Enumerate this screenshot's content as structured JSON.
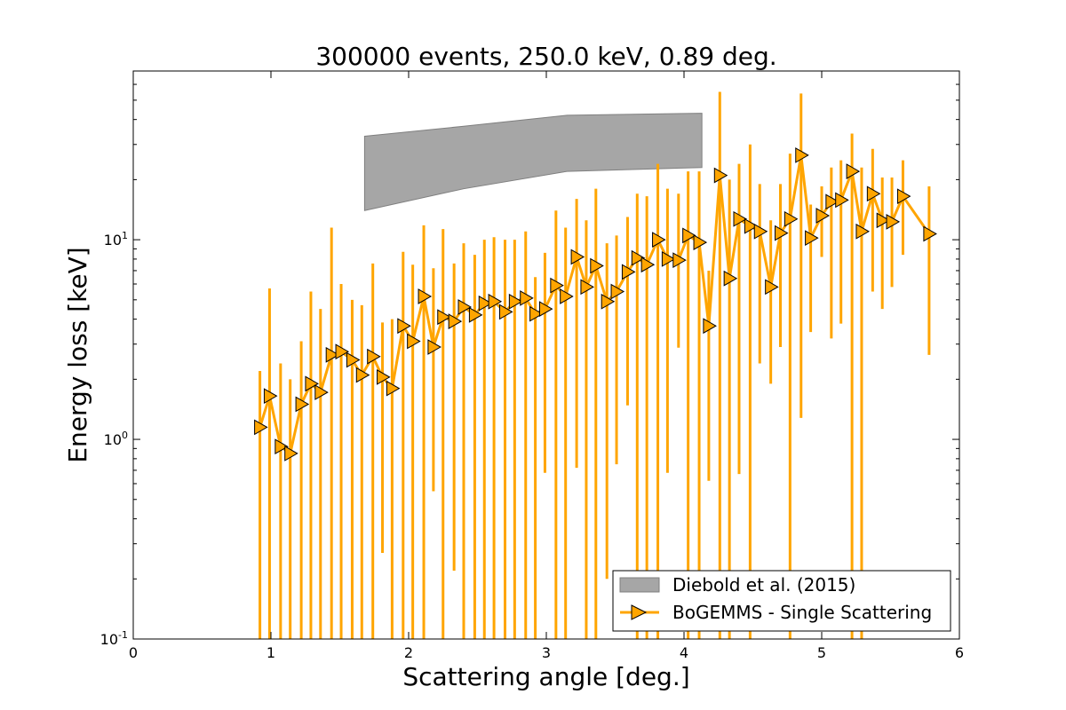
{
  "chart_data": {
    "type": "line",
    "title": "300000 events, 250.0 keV, 0.89 deg.",
    "xlabel": "Scattering angle [deg.]",
    "ylabel": "Energy loss [keV]",
    "xlim": [
      0,
      6
    ],
    "ylim": [
      0.1,
      70
    ],
    "yscale": "log",
    "x_ticks": [
      0,
      1,
      2,
      3,
      4,
      5,
      6
    ],
    "x_tick_labels": [
      "0",
      "1",
      "2",
      "3",
      "4",
      "5",
      "6"
    ],
    "y_ticks": [
      0.1,
      1,
      10
    ],
    "y_tick_labels": [
      {
        "base": "10",
        "exp": "-1"
      },
      {
        "base": "10",
        "exp": "0"
      },
      {
        "base": "10",
        "exp": "1"
      }
    ],
    "legend_position": "bottom-right",
    "band": {
      "name": "Diebold et al. (2015)",
      "color": "#a6a6a6",
      "x": [
        1.68,
        2.4,
        3.15,
        4.13
      ],
      "lower": [
        14,
        18,
        22,
        23
      ],
      "upper": [
        33,
        37,
        42,
        43
      ]
    },
    "series": [
      {
        "name": "BoGEMMS - Single Scattering",
        "color": "#ffa500",
        "x": [
          0.92,
          0.99,
          1.07,
          1.14,
          1.22,
          1.29,
          1.36,
          1.44,
          1.51,
          1.59,
          1.66,
          1.74,
          1.81,
          1.88,
          1.96,
          2.03,
          2.11,
          2.18,
          2.25,
          2.33,
          2.4,
          2.48,
          2.55,
          2.62,
          2.7,
          2.77,
          2.85,
          2.92,
          2.99,
          3.07,
          3.14,
          3.22,
          3.29,
          3.36,
          3.44,
          3.51,
          3.59,
          3.66,
          3.73,
          3.81,
          3.88,
          3.96,
          4.03,
          4.11,
          4.18,
          4.26,
          4.33,
          4.4,
          4.48,
          4.55,
          4.63,
          4.7,
          4.77,
          4.85,
          4.92,
          5.0,
          5.07,
          5.14,
          5.22,
          5.29,
          5.37,
          5.44,
          5.51,
          5.59,
          5.78
        ],
        "y": [
          1.15,
          1.65,
          0.92,
          0.85,
          1.5,
          1.9,
          1.72,
          2.65,
          2.75,
          2.5,
          2.1,
          2.6,
          2.05,
          1.8,
          3.7,
          3.1,
          5.2,
          2.9,
          4.1,
          3.9,
          4.6,
          4.2,
          4.8,
          4.9,
          4.35,
          4.9,
          5.1,
          4.25,
          4.5,
          5.9,
          5.2,
          8.2,
          5.8,
          7.4,
          4.9,
          5.5,
          6.9,
          8.1,
          7.5,
          10.0,
          8.0,
          7.9,
          10.5,
          9.7,
          3.7,
          21.0,
          6.4,
          12.7,
          11.7,
          11.0,
          5.8,
          10.8,
          12.7,
          26.5,
          10.2,
          13.2,
          15.5,
          15.8,
          22.0,
          11.0,
          17.0,
          12.5,
          12.3,
          16.5,
          10.7
        ],
        "y_low": [
          0.1,
          0.1,
          0.1,
          0.1,
          0.1,
          0.1,
          0.1,
          0.1,
          0.1,
          0.1,
          0.1,
          0.1,
          0.27,
          0.1,
          0.1,
          0.1,
          0.1,
          0.55,
          0.1,
          0.22,
          0.1,
          0.1,
          0.1,
          0.1,
          0.1,
          0.1,
          0.1,
          0.1,
          0.68,
          0.1,
          0.1,
          0.72,
          0.1,
          0.1,
          0.2,
          0.75,
          1.48,
          0.1,
          0.1,
          0.1,
          0.68,
          2.88,
          0.1,
          0.1,
          0.62,
          0.1,
          0.1,
          0.67,
          0.1,
          2.4,
          1.9,
          2.9,
          0.1,
          1.28,
          3.45,
          8.2,
          3.2,
          3.8,
          0.1,
          0.1,
          5.5,
          4.5,
          5.8,
          8.4,
          2.65
        ],
        "y_high": [
          2.2,
          5.7,
          2.4,
          2.0,
          3.1,
          5.5,
          4.5,
          11.5,
          6.0,
          5.0,
          4.7,
          7.6,
          3.85,
          4.0,
          8.7,
          7.5,
          11.8,
          7.2,
          11.3,
          7.6,
          9.6,
          8.4,
          10.0,
          10.3,
          10.0,
          10.0,
          11.0,
          6.5,
          8.6,
          14.0,
          11.5,
          16.0,
          12.5,
          18.0,
          9.6,
          10.5,
          13.0,
          17.0,
          16.5,
          24.0,
          18.0,
          17.0,
          22.0,
          22.0,
          7.0,
          55.0,
          20.0,
          24.0,
          30.0,
          19.0,
          12.5,
          19.0,
          27.0,
          54.0,
          15.0,
          18.5,
          23.0,
          25.0,
          34.0,
          23.0,
          28.5,
          20.5,
          20.5,
          25.0,
          18.5
        ]
      }
    ]
  }
}
